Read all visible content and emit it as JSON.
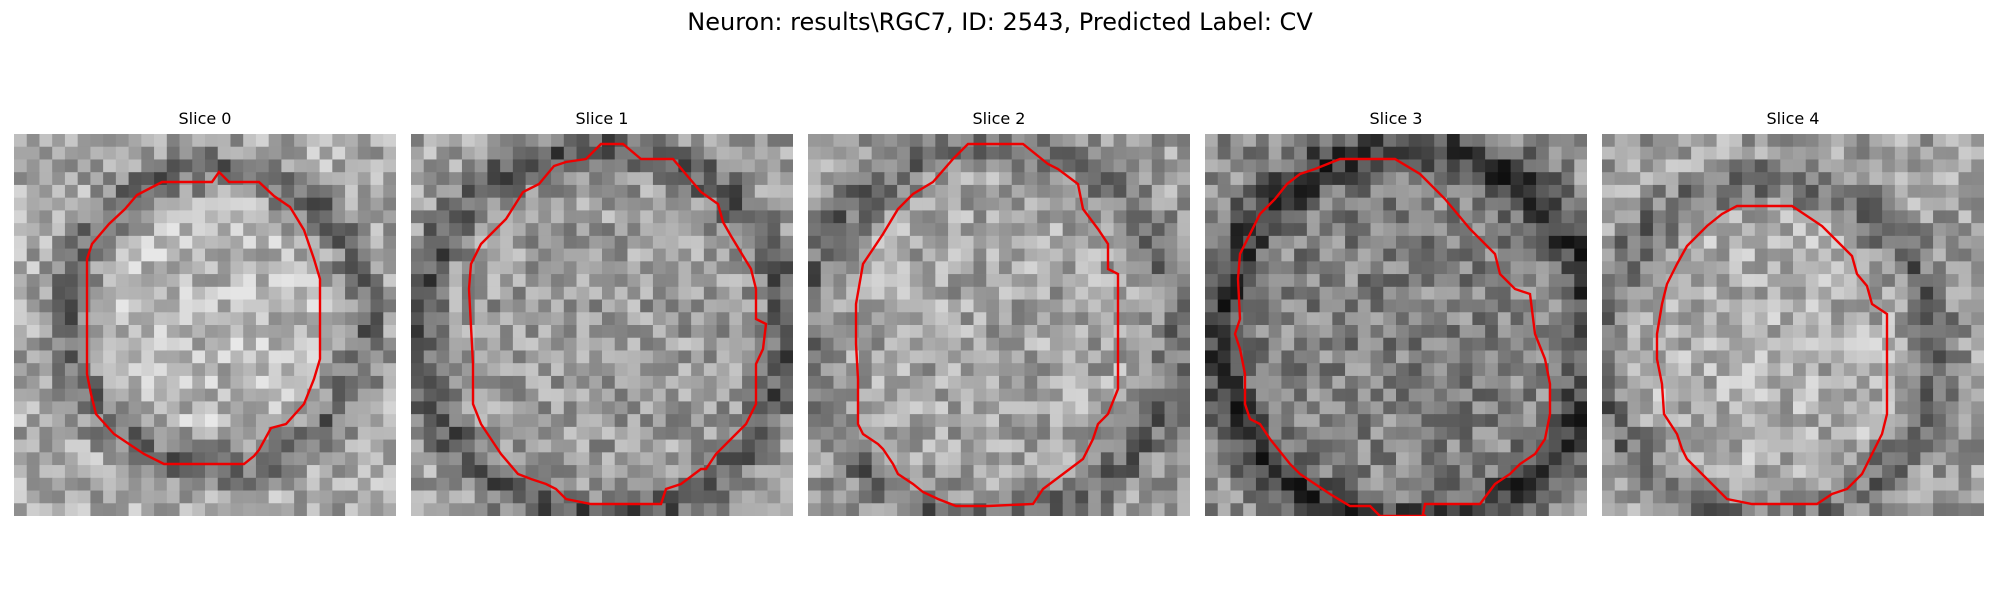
{
  "figure": {
    "title": "Neuron: results\\RGC7, ID: 2543, Predicted Label: CV",
    "panels": [
      {
        "label": "Slice 0"
      },
      {
        "label": "Slice 1"
      },
      {
        "label": "Slice 2"
      },
      {
        "label": "Slice 3"
      },
      {
        "label": "Slice 4"
      }
    ],
    "contour_color": "#ee0000",
    "colormap": "grayscale"
  }
}
